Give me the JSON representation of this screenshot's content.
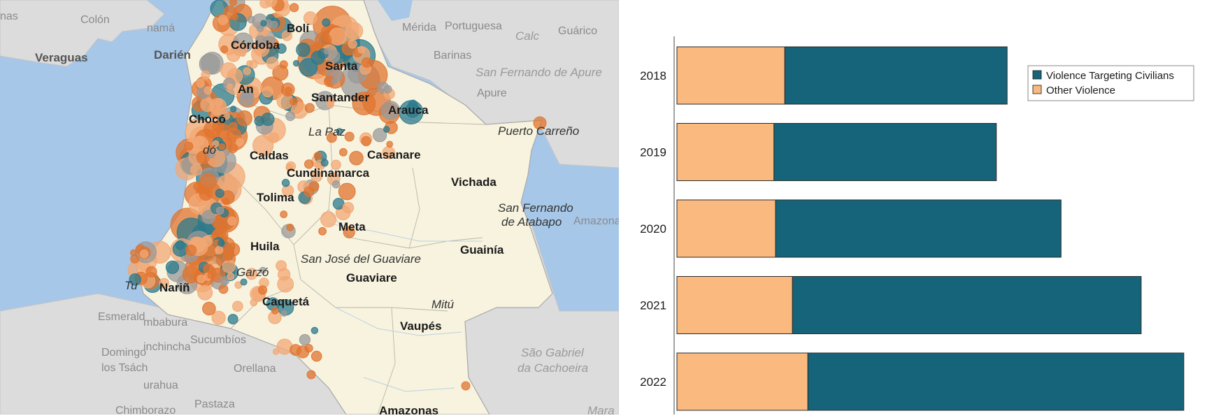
{
  "colors": {
    "civilians": "#15647a",
    "other": "#f9b97f",
    "ocean": "#a7c7e8",
    "land_colombia": "#f7f3df",
    "land_neighbors": "#dcdcdc",
    "event_dot_orange": "#e0742f",
    "event_dot_light": "#f2a874",
    "event_dot_teal": "#2b7a8c",
    "event_dot_gray": "#9a9a9a"
  },
  "map": {
    "labels": {
      "colon": "Colón",
      "panama": "namá",
      "nas": "nas",
      "veraguas": "Veraguas",
      "darien": "Darién",
      "choco": "Chocó",
      "do": "dó",
      "caldas": "Caldas",
      "tolima": "Tolima",
      "huila": "Huila",
      "narino": "Nariñ",
      "tumaco": "Tu",
      "caqueta": "Caquetá",
      "garzon": "Garzó",
      "cundinamarca": "Cundinamarca",
      "meta": "Meta",
      "guaviare": "Guaviare",
      "san_jose": "San José del Guaviare",
      "vaupes": "Vaupés",
      "mitu": "Mitú",
      "amazonas": "Amazonas",
      "guainia": "Guainía",
      "vichada": "Vichada",
      "casanare": "Casanare",
      "arauca": "Arauca",
      "santander": "Santander",
      "la_paz": "La Paz",
      "bolivar": "Bolí",
      "cordoba": "Córdoba",
      "antioquia": "An",
      "santa": "Santa",
      "merida": "Mérida",
      "barinas": "Barinas",
      "portuguesa": "Portuguesa",
      "calc": "Calc",
      "guarico": "Guárico",
      "san_fernando_apure": "San Fernando de Apure",
      "apure": "Apure",
      "puerto_carreno": "Puerto Carreño",
      "san_fernando_atabapo_1": "San Fernando",
      "san_fernando_atabapo_2": "de Atabapo",
      "amazona_ve": "Amazona",
      "esmeraldas": "Esmerald",
      "imbabura": "mbabura",
      "sucumbios": "Sucumbíos",
      "santo_domingo_1": "Domingo",
      "santo_domingo_2": "los Tsách",
      "pichincha": "inchincha",
      "orellana": "Orellana",
      "tungurahua": "urahua",
      "pastaza": "Pastaza",
      "chimborazo": "Chimborazo",
      "sao_gabriel_1": "São Gabriel",
      "sao_gabriel_2": "da Cachoeira",
      "mara": "Mara"
    }
  },
  "chart_data": {
    "type": "bar",
    "orientation": "horizontal",
    "stacked": true,
    "categories": [
      "2018",
      "2019",
      "2020",
      "2021",
      "2022"
    ],
    "series": [
      {
        "name": "Other Violence",
        "color": "#f9b97f",
        "values": [
          1050,
          945,
          960,
          1125,
          1275
        ]
      },
      {
        "name": "Violence Targeting Civilians",
        "color": "#15647a",
        "values": [
          2165,
          2165,
          2780,
          3395,
          3660
        ]
      }
    ],
    "legend": {
      "position": "top-right",
      "entries": [
        "Violence Targeting Civilians",
        "Other Violence"
      ]
    },
    "xlim": [
      0,
      4950
    ],
    "title": "",
    "xlabel": "",
    "ylabel": ""
  }
}
